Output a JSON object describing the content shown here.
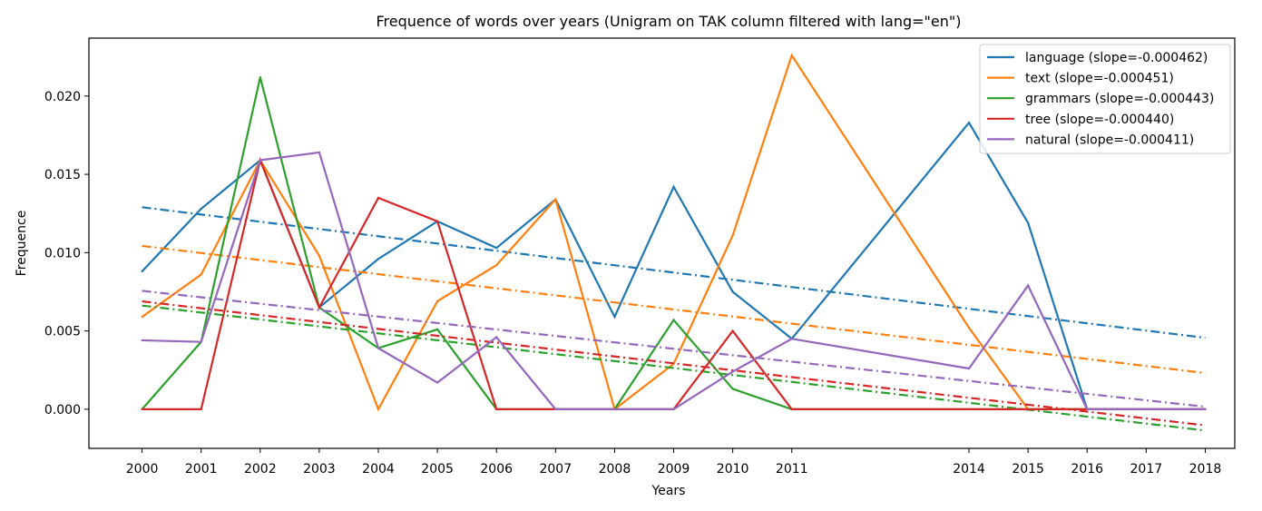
{
  "chart_data": {
    "type": "line",
    "title": "Frequence of words over years (Unigram on TAK column filtered with lang=\"en\")",
    "xlabel": "Years",
    "ylabel": "Frequence",
    "x": [
      2000,
      2001,
      2002,
      2003,
      2004,
      2005,
      2006,
      2007,
      2008,
      2009,
      2010,
      2011,
      2014,
      2015,
      2016,
      2018
    ],
    "xticks": [
      2000,
      2001,
      2002,
      2003,
      2004,
      2005,
      2006,
      2007,
      2008,
      2009,
      2010,
      2011,
      2014,
      2015,
      2016,
      2017,
      2018
    ],
    "xlim": [
      1999.1,
      2018.5
    ],
    "yticks": [
      0.0,
      0.005,
      0.01,
      0.015,
      0.02
    ],
    "ytick_labels": [
      "0.000",
      "0.005",
      "0.010",
      "0.015",
      "0.020"
    ],
    "ylim": [
      -0.0025,
      0.0237
    ],
    "legend_position": "top-right",
    "grid": false,
    "series": [
      {
        "name": "language (slope=-0.000462)",
        "color": "#1f77b4",
        "values": [
          0.0088,
          0.0128,
          0.0159,
          0.0065,
          0.0096,
          0.012,
          0.0103,
          0.0134,
          0.0059,
          0.0142,
          0.0075,
          0.0045,
          0.0183,
          0.0119,
          0.0,
          0.0
        ],
        "trend": [
          0.0129,
          0.00456
        ]
      },
      {
        "name": "text (slope=-0.000451)",
        "color": "#ff7f0e",
        "values": [
          0.0059,
          0.0086,
          0.0159,
          0.0098,
          0.0,
          0.0069,
          0.0092,
          0.0134,
          0.0,
          0.0029,
          0.0111,
          0.0226,
          0.0052,
          0.0,
          0.0,
          0.0
        ],
        "trend": [
          0.01043,
          0.00231
        ]
      },
      {
        "name": "grammars (slope=-0.000443)",
        "color": "#2ca02c",
        "values": [
          0.0,
          0.0043,
          0.0212,
          0.0065,
          0.0039,
          0.0051,
          0.0,
          0.0,
          0.0,
          0.0057,
          0.0013,
          0.0,
          0.0,
          0.0,
          0.0,
          0.0
        ],
        "trend": [
          0.00662,
          -0.00136
        ]
      },
      {
        "name": "tree (slope=-0.000440)",
        "color": "#d62728",
        "values": [
          0.0,
          0.0,
          0.0159,
          0.0065,
          0.0135,
          0.012,
          0.0,
          0.0,
          0.0,
          0.0,
          0.005,
          0.0,
          0.0,
          0.0,
          0.0,
          0.0
        ],
        "trend": [
          0.00689,
          -0.00103
        ]
      },
      {
        "name": "natural (slope=-0.000411)",
        "color": "#9467bd",
        "values": [
          0.0044,
          0.0043,
          0.0159,
          0.0164,
          0.0039,
          0.0017,
          0.0046,
          0.0,
          0.0,
          0.0,
          0.0024,
          0.0045,
          0.0026,
          0.0079,
          0.0,
          0.0
        ],
        "trend": [
          0.00756,
          0.00016
        ]
      }
    ]
  }
}
